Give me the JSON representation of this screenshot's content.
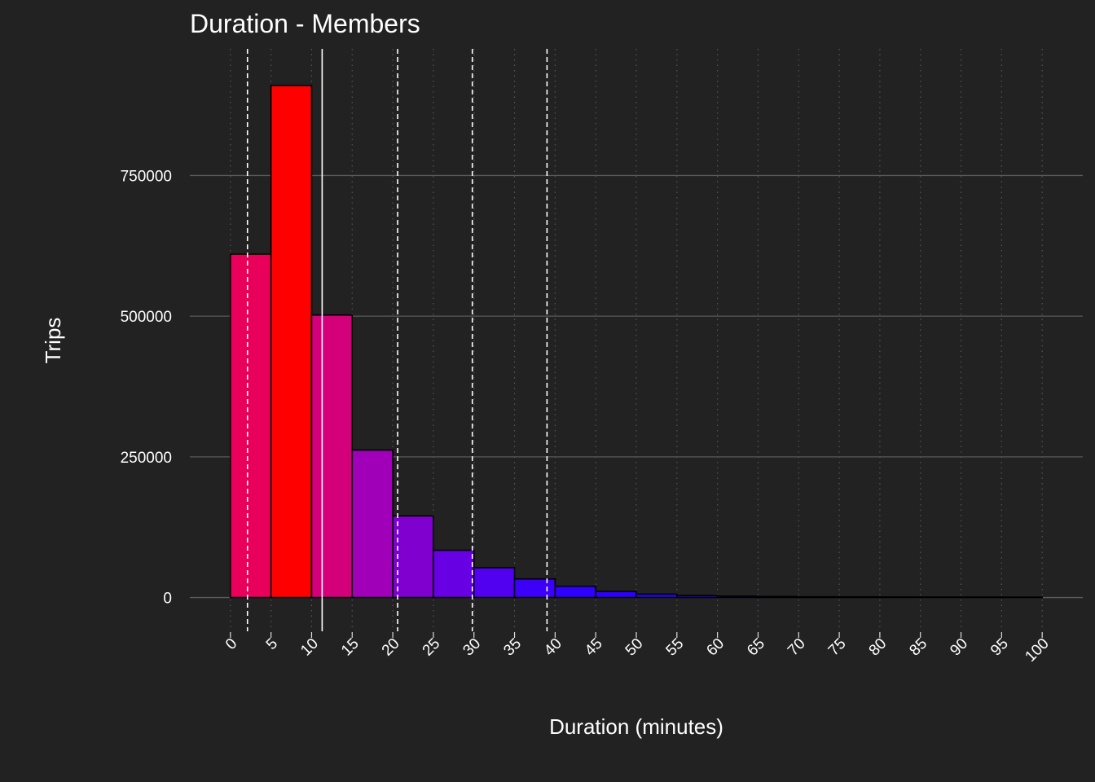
{
  "chart_data": {
    "type": "bar",
    "title": "Duration - Members",
    "xlabel": "Duration (minutes)",
    "ylabel": "Trips",
    "xlim": [
      -5,
      105
    ],
    "ylim": [
      -60000,
      975000
    ],
    "x_ticks": [
      0,
      5,
      10,
      15,
      20,
      25,
      30,
      35,
      40,
      45,
      50,
      55,
      60,
      65,
      70,
      75,
      80,
      85,
      90,
      95,
      100
    ],
    "y_ticks": [
      0,
      250000,
      500000,
      750000
    ],
    "bin_width": 5,
    "bins": [
      {
        "start": 0,
        "end": 5,
        "value": 610000,
        "color": "#E8005A"
      },
      {
        "start": 5,
        "end": 10,
        "value": 910000,
        "color": "#FF0000"
      },
      {
        "start": 10,
        "end": 15,
        "value": 502000,
        "color": "#D4007A"
      },
      {
        "start": 15,
        "end": 20,
        "value": 262000,
        "color": "#A000B8"
      },
      {
        "start": 20,
        "end": 25,
        "value": 145000,
        "color": "#8000D0"
      },
      {
        "start": 25,
        "end": 30,
        "value": 84000,
        "color": "#6800E4"
      },
      {
        "start": 30,
        "end": 35,
        "value": 53000,
        "color": "#5200F0"
      },
      {
        "start": 35,
        "end": 40,
        "value": 33000,
        "color": "#3C00F8"
      },
      {
        "start": 40,
        "end": 45,
        "value": 20000,
        "color": "#3000FF"
      },
      {
        "start": 45,
        "end": 50,
        "value": 11000,
        "color": "#2C00FF"
      },
      {
        "start": 50,
        "end": 55,
        "value": 6000,
        "color": "#2800FF"
      },
      {
        "start": 55,
        "end": 60,
        "value": 3500,
        "color": "#2600FF"
      },
      {
        "start": 60,
        "end": 65,
        "value": 2500,
        "color": "#2400FF"
      },
      {
        "start": 65,
        "end": 70,
        "value": 1800,
        "color": "#2200FF"
      },
      {
        "start": 70,
        "end": 75,
        "value": 1400,
        "color": "#2200FF"
      },
      {
        "start": 75,
        "end": 80,
        "value": 1200,
        "color": "#2000FF"
      },
      {
        "start": 80,
        "end": 85,
        "value": 1000,
        "color": "#2000FF"
      },
      {
        "start": 85,
        "end": 90,
        "value": 900,
        "color": "#2000FF"
      },
      {
        "start": 90,
        "end": 95,
        "value": 800,
        "color": "#2000FF"
      },
      {
        "start": 95,
        "end": 100,
        "value": 700,
        "color": "#2000FF"
      }
    ],
    "reference_lines": [
      {
        "x": 2.1,
        "style": "dashed"
      },
      {
        "x": 11.3,
        "style": "solid"
      },
      {
        "x": 20.6,
        "style": "dashed"
      },
      {
        "x": 29.8,
        "style": "dashed"
      },
      {
        "x": 39.0,
        "style": "dashed"
      }
    ],
    "grid": true,
    "legend": "none"
  },
  "colors": {
    "background": "#222222",
    "grid_major_y": "#5a5a5a",
    "grid_major_x": "#555555",
    "bar_outline": "#000000",
    "reference_line": "#ffffff",
    "text": "#ffffff"
  }
}
